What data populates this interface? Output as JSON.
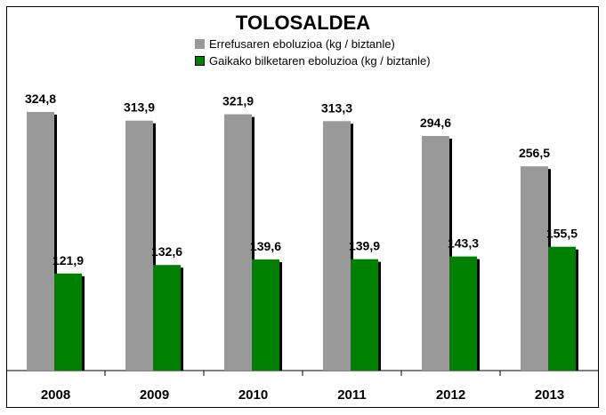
{
  "chart_data": {
    "type": "bar",
    "title": "TOLOSALDEA",
    "categories": [
      "2008",
      "2009",
      "2010",
      "2011",
      "2012",
      "2013"
    ],
    "series": [
      {
        "name": "Errefusaren eboluzioa (kg / biztanle)",
        "color": "#999999",
        "values": [
          324.8,
          313.9,
          321.9,
          313.3,
          294.6,
          256.5
        ],
        "labels": [
          "324,8",
          "313,9",
          "321,9",
          "313,3",
          "294,6",
          "256,5"
        ]
      },
      {
        "name": "Gaikako bilketaren eboluzioa (kg / biztanle)",
        "color": "#008000",
        "values": [
          121.9,
          132.6,
          139.6,
          139.9,
          143.3,
          155.5
        ],
        "labels": [
          "121,9",
          "132,6",
          "139,6",
          "139,9",
          "143,3",
          "155,5"
        ]
      }
    ],
    "xlabel": "",
    "ylabel": "",
    "ylim": [
      0,
      360
    ],
    "grid": false,
    "legend": "top-center"
  }
}
